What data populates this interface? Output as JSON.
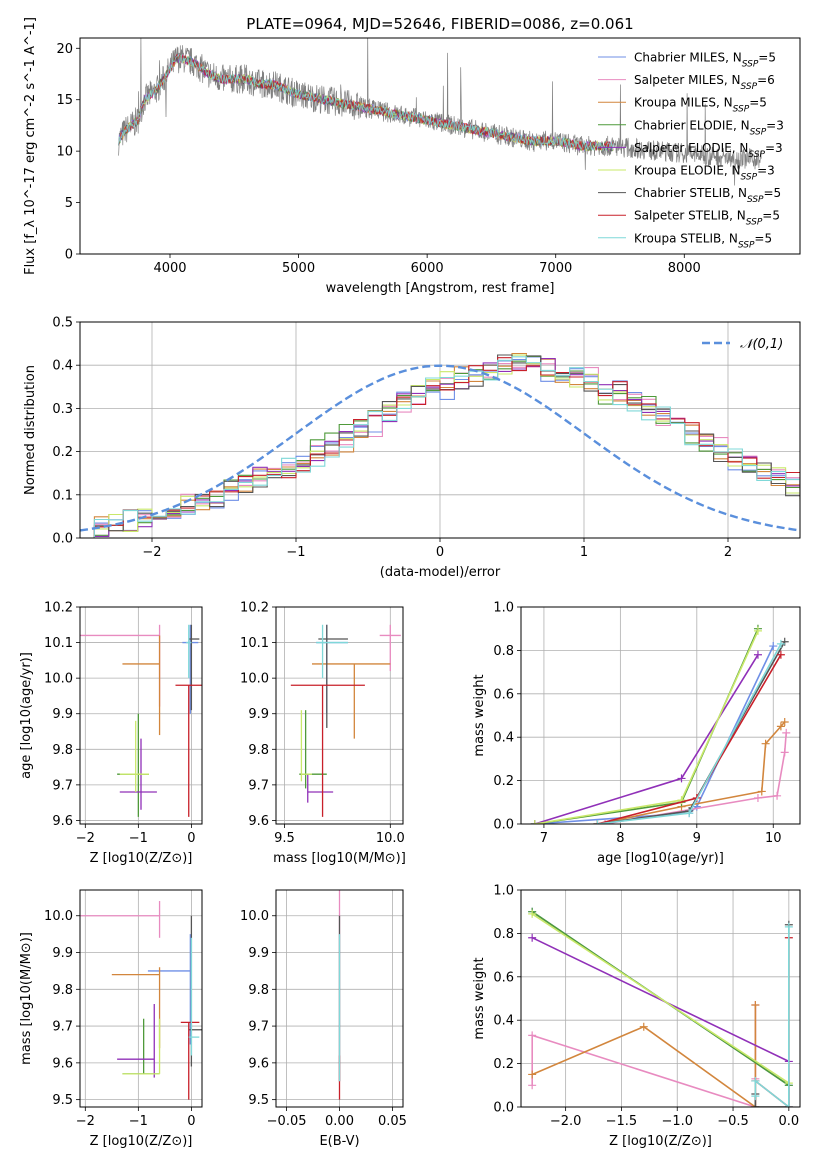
{
  "figure": {
    "title": "PLATE=0964, MJD=52646, FIBERID=0086, z=0.061"
  },
  "series_colors": [
    "#6f8fe6",
    "#e88bc0",
    "#d2863d",
    "#4f9a3a",
    "#9030b8",
    "#c9e86a",
    "#555555",
    "#c8202a",
    "#7fd8d8"
  ],
  "legend_labels": [
    "Chabrier MILES, N_SSP=5",
    "Salpeter MILES, N_SSP=6",
    "Kroupa MILES, N_SSP=5",
    "Chabrier ELODIE, N_SSP=3",
    "Salpeter ELODIE, N_SSP=3",
    "Kroupa ELODIE, N_SSP=3",
    "Chabrier STELIB, N_SSP=5",
    "Salpeter STELIB, N_SSP=5",
    "Kroupa STELIB, N_SSP=5"
  ],
  "chart_data": [
    {
      "id": "spectrum",
      "type": "line",
      "xlabel": "wavelength [Angstrom, rest frame]",
      "ylabel": "Flux [f_λ 10^-17 erg cm^-2 s^-1 A^-1]",
      "xlim": [
        3300,
        8900
      ],
      "ylim": [
        0,
        21
      ],
      "xticks": [
        4000,
        5000,
        6000,
        7000,
        8000
      ],
      "yticks": [
        0,
        5,
        10,
        15,
        20
      ],
      "grid": false,
      "legend": "top-right",
      "data_profile": {
        "x": [
          3600,
          3650,
          3700,
          3750,
          3800,
          3900,
          3950,
          4000,
          4050,
          4100,
          4200,
          4300,
          4400,
          4500,
          4600,
          4700,
          4800,
          4900,
          5000,
          5200,
          5400,
          5600,
          5800,
          6000,
          6200,
          6400,
          6600,
          6800,
          7000,
          7200,
          7400,
          7600,
          7800,
          8000,
          8200,
          8400,
          8600
        ],
        "y": [
          11.0,
          12.0,
          12.5,
          13.0,
          15.0,
          16.0,
          17.0,
          18.0,
          19.0,
          19.0,
          18.5,
          17.5,
          17.0,
          17.0,
          17.0,
          16.5,
          16.5,
          16.0,
          15.5,
          15.0,
          14.5,
          14.0,
          13.5,
          13.0,
          12.5,
          12.0,
          11.5,
          11.0,
          11.0,
          10.5,
          10.5,
          10.3,
          10.0,
          9.8,
          9.5,
          9.3,
          9.2
        ]
      },
      "model_x_range": [
        3600,
        7450
      ]
    },
    {
      "id": "residual_hist",
      "type": "line",
      "xlabel": "(data-model)/error",
      "ylabel": "Normed distribution",
      "xlim": [
        -2.5,
        2.5
      ],
      "ylim": [
        0,
        0.5
      ],
      "xticks": [
        -2,
        -1,
        0,
        1,
        2
      ],
      "yticks": [
        0.0,
        0.1,
        0.2,
        0.3,
        0.4,
        0.5
      ],
      "grid": true,
      "legend": "top-right",
      "legend_label": "N(0,1)",
      "reference_curve": "normal(0,1)",
      "bin_width": 0.1,
      "bin_start": -2.5,
      "series_hist": [
        [
          0.02,
          0.03,
          0.03,
          0.04,
          0.05,
          0.06,
          0.07,
          0.07,
          0.08,
          0.09,
          0.11,
          0.13,
          0.14,
          0.14,
          0.16,
          0.18,
          0.21,
          0.22,
          0.24,
          0.25,
          0.27,
          0.31,
          0.32,
          0.33,
          0.36,
          0.34,
          0.36,
          0.37,
          0.38,
          0.4,
          0.41,
          0.4,
          0.38,
          0.39,
          0.37,
          0.36,
          0.33,
          0.34,
          0.32,
          0.31,
          0.28,
          0.26,
          0.24,
          0.22,
          0.2,
          0.18,
          0.17,
          0.15,
          0.14,
          0.12,
          0.11
        ],
        [
          0.02,
          0.02,
          0.03,
          0.04,
          0.05,
          0.06,
          0.07,
          0.08,
          0.09,
          0.1,
          0.12,
          0.13,
          0.14,
          0.15,
          0.16,
          0.17,
          0.19,
          0.21,
          0.23,
          0.25,
          0.26,
          0.29,
          0.31,
          0.33,
          0.35,
          0.36,
          0.37,
          0.38,
          0.39,
          0.4,
          0.41,
          0.41,
          0.4,
          0.39,
          0.38,
          0.37,
          0.35,
          0.34,
          0.32,
          0.3,
          0.28,
          0.27,
          0.25,
          0.23,
          0.21,
          0.19,
          0.17,
          0.16,
          0.14,
          0.13,
          0.11
        ],
        [
          0.02,
          0.03,
          0.03,
          0.04,
          0.05,
          0.06,
          0.07,
          0.08,
          0.09,
          0.1,
          0.11,
          0.13,
          0.14,
          0.15,
          0.16,
          0.17,
          0.19,
          0.21,
          0.22,
          0.25,
          0.27,
          0.29,
          0.32,
          0.34,
          0.35,
          0.36,
          0.38,
          0.38,
          0.39,
          0.4,
          0.41,
          0.4,
          0.39,
          0.38,
          0.37,
          0.36,
          0.34,
          0.33,
          0.31,
          0.29,
          0.28,
          0.26,
          0.24,
          0.22,
          0.2,
          0.19,
          0.17,
          0.15,
          0.14,
          0.12,
          0.11
        ]
      ]
    },
    {
      "id": "age_vs_Z",
      "type": "scatter",
      "xlabel": "Z [log10(Z/Z⊙)]",
      "ylabel": "age [log10(age/yr)]",
      "xlim": [
        -2.1,
        0.2
      ],
      "ylim": [
        9.59,
        10.2
      ],
      "xticks": [
        -2,
        -1,
        0
      ],
      "yticks": [
        9.6,
        9.7,
        9.8,
        9.9,
        10.0,
        10.1,
        10.2
      ],
      "grid": true,
      "points": [
        {
          "series": 0,
          "x": -0.02,
          "y": 10.1,
          "xerr": [
            0.15,
            0.15
          ],
          "yerr": [
            0.2,
            0.05
          ]
        },
        {
          "series": 1,
          "x": -0.6,
          "y": 10.12,
          "xerr": [
            1.5,
            0.0
          ],
          "yerr": [
            0.2,
            0.03
          ]
        },
        {
          "series": 2,
          "x": -0.6,
          "y": 10.04,
          "xerr": [
            0.7,
            0.0
          ],
          "yerr": [
            0.2,
            0.08
          ]
        },
        {
          "series": 3,
          "x": -1.0,
          "y": 9.73,
          "xerr": [
            0.4,
            0.2
          ],
          "yerr": [
            0.12,
            0.17
          ]
        },
        {
          "series": 4,
          "x": -0.95,
          "y": 9.68,
          "xerr": [
            0.4,
            0.3
          ],
          "yerr": [
            0.05,
            0.15
          ]
        },
        {
          "series": 5,
          "x": -1.05,
          "y": 9.73,
          "xerr": [
            0.3,
            0.25
          ],
          "yerr": [
            0.05,
            0.15
          ]
        },
        {
          "series": 6,
          "x": 0.0,
          "y": 10.11,
          "xerr": [
            0.05,
            0.15
          ],
          "yerr": [
            0.2,
            0.04
          ]
        },
        {
          "series": 7,
          "x": -0.05,
          "y": 9.98,
          "xerr": [
            0.25,
            0.25
          ],
          "yerr": [
            0.37,
            0.0
          ]
        },
        {
          "series": 8,
          "x": -0.05,
          "y": 10.1,
          "xerr": [
            0.05,
            0.05
          ],
          "yerr": [
            0.1,
            0.05
          ]
        }
      ]
    },
    {
      "id": "age_vs_mass",
      "type": "scatter",
      "xlabel": "mass [log10(M/M⊙)]",
      "ylabel": "",
      "xlim": [
        9.46,
        10.06
      ],
      "ylim": [
        9.59,
        10.2
      ],
      "xticks": [
        9.5,
        10.0
      ],
      "yticks": [
        9.6,
        9.7,
        9.8,
        9.9,
        10.0,
        10.1,
        10.2
      ],
      "grid": true,
      "points": [
        {
          "series": 0,
          "x": 9.7,
          "y": 10.1,
          "xerr": [
            0.05,
            0.1
          ],
          "yerr": [
            0.2,
            0.05
          ]
        },
        {
          "series": 1,
          "x": 10.0,
          "y": 10.12,
          "xerr": [
            0.05,
            0.05
          ],
          "yerr": [
            0.1,
            0.03
          ]
        },
        {
          "series": 2,
          "x": 9.83,
          "y": 10.04,
          "xerr": [
            0.2,
            0.17
          ],
          "yerr": [
            0.21,
            0.0
          ]
        },
        {
          "series": 3,
          "x": 9.6,
          "y": 9.73,
          "xerr": [
            0.03,
            0.1
          ],
          "yerr": [
            0.04,
            0.18
          ]
        },
        {
          "series": 4,
          "x": 9.61,
          "y": 9.68,
          "xerr": [
            0.0,
            0.12
          ],
          "yerr": [
            0.03,
            0.05
          ]
        },
        {
          "series": 5,
          "x": 9.58,
          "y": 9.73,
          "xerr": [
            0.0,
            0.05
          ],
          "yerr": [
            0.02,
            0.18
          ]
        },
        {
          "series": 6,
          "x": 9.7,
          "y": 10.11,
          "xerr": [
            0.04,
            0.1
          ],
          "yerr": [
            0.25,
            0.04
          ]
        },
        {
          "series": 7,
          "x": 9.68,
          "y": 9.98,
          "xerr": [
            0.15,
            0.2
          ],
          "yerr": [
            0.37,
            0.0
          ]
        },
        {
          "series": 8,
          "x": 9.68,
          "y": 10.1,
          "xerr": [
            0.03,
            0.12
          ],
          "yerr": [
            0.1,
            0.05
          ]
        }
      ]
    },
    {
      "id": "weight_vs_age",
      "type": "line",
      "xlabel": "age [log10(age/yr)]",
      "ylabel": "mass weight",
      "xlim": [
        6.7,
        10.35
      ],
      "ylim": [
        0,
        1.0
      ],
      "xticks": [
        7,
        8,
        9,
        10
      ],
      "yticks": [
        0.0,
        0.2,
        0.4,
        0.6,
        0.8,
        1.0
      ],
      "grid": true,
      "series": [
        {
          "x": [
            6.88,
            8.9,
            9.0,
            10.0
          ],
          "y": [
            0.0,
            0.05,
            0.08,
            0.82
          ]
        },
        {
          "x": [
            7.8,
            9.8,
            10.05,
            10.15,
            10.17
          ],
          "y": [
            0.0,
            0.12,
            0.13,
            0.33,
            0.42
          ]
        },
        {
          "x": [
            7.7,
            8.8,
            9.85,
            9.9,
            10.1,
            10.15
          ],
          "y": [
            0.0,
            0.08,
            0.15,
            0.37,
            0.45,
            0.47
          ]
        },
        {
          "x": [
            6.88,
            8.8,
            9.8
          ],
          "y": [
            0.0,
            0.1,
            0.9
          ]
        },
        {
          "x": [
            6.88,
            8.8,
            9.8
          ],
          "y": [
            0.0,
            0.21,
            0.78
          ]
        },
        {
          "x": [
            6.88,
            8.8,
            9.8
          ],
          "y": [
            0.0,
            0.11,
            0.89
          ]
        },
        {
          "x": [
            7.7,
            8.9,
            10.15
          ],
          "y": [
            0.0,
            0.06,
            0.84
          ]
        },
        {
          "x": [
            7.7,
            9.0,
            10.1
          ],
          "y": [
            0.0,
            0.12,
            0.78
          ]
        },
        {
          "x": [
            7.7,
            8.9,
            10.1
          ],
          "y": [
            0.0,
            0.05,
            0.83
          ]
        }
      ]
    },
    {
      "id": "mass_vs_Z",
      "type": "scatter",
      "xlabel": "Z [log10(Z/Z⊙)]",
      "ylabel": "mass [log10(M/M⊙)]",
      "xlim": [
        -2.1,
        0.2
      ],
      "ylim": [
        9.48,
        10.07
      ],
      "xticks": [
        -2,
        -1,
        0
      ],
      "yticks": [
        9.5,
        9.6,
        9.7,
        9.8,
        9.9,
        10.0
      ],
      "grid": true,
      "points": [
        {
          "series": 0,
          "x": -0.02,
          "y": 9.85,
          "xerr": [
            0.8,
            0.0
          ],
          "yerr": [
            0.2,
            0.1
          ]
        },
        {
          "series": 1,
          "x": -0.6,
          "y": 10.0,
          "xerr": [
            1.5,
            0.0
          ],
          "yerr": [
            0.06,
            0.04
          ]
        },
        {
          "series": 2,
          "x": -0.6,
          "y": 9.84,
          "xerr": [
            0.9,
            0.0
          ],
          "yerr": [
            0.2,
            0.02
          ]
        },
        {
          "series": 3,
          "x": -0.9,
          "y": 9.57,
          "xerr": [
            0.4,
            0.3
          ],
          "yerr": [
            0.0,
            0.15
          ]
        },
        {
          "series": 4,
          "x": -0.7,
          "y": 9.61,
          "xerr": [
            0.7,
            0.0
          ],
          "yerr": [
            0.05,
            0.15
          ]
        },
        {
          "series": 5,
          "x": -0.6,
          "y": 9.57,
          "xerr": [
            0.7,
            0.0
          ],
          "yerr": [
            0.0,
            0.15
          ]
        },
        {
          "series": 6,
          "x": 0.0,
          "y": 9.69,
          "xerr": [
            0.05,
            0.2
          ],
          "yerr": [
            0.1,
            0.31
          ]
        },
        {
          "series": 7,
          "x": -0.05,
          "y": 9.71,
          "xerr": [
            0.15,
            0.2
          ],
          "yerr": [
            0.21,
            0.0
          ]
        },
        {
          "series": 8,
          "x": 0.0,
          "y": 9.67,
          "xerr": [
            0.05,
            0.15
          ],
          "yerr": [
            0.05,
            0.27
          ]
        }
      ]
    },
    {
      "id": "mass_vs_ebv",
      "type": "scatter",
      "xlabel": "E(B-V)",
      "ylabel": "",
      "xlim": [
        -0.06,
        0.06
      ],
      "ylim": [
        9.48,
        10.07
      ],
      "xticks": [
        -0.05,
        0.0,
        0.05
      ],
      "yticks": [
        9.5,
        9.6,
        9.7,
        9.8,
        9.9,
        10.0
      ],
      "grid": true,
      "points": [
        {
          "series": 1,
          "x": 0.0,
          "y": 10.0,
          "xerr": [
            0,
            0
          ],
          "yerr": [
            0.45,
            0.07
          ]
        },
        {
          "series": 6,
          "x": 0.0,
          "y": 9.95,
          "xerr": [
            0,
            0
          ],
          "yerr": [
            0.4,
            0.05
          ]
        },
        {
          "series": 7,
          "x": 0.0,
          "y": 9.55,
          "xerr": [
            0,
            0
          ],
          "yerr": [
            0.05,
            0.07
          ]
        },
        {
          "series": 8,
          "x": 0.0,
          "y": 9.75,
          "xerr": [
            0,
            0
          ],
          "yerr": [
            0.2,
            0.2
          ]
        }
      ]
    },
    {
      "id": "weight_vs_Z",
      "type": "line",
      "xlabel": "Z [log10(Z/Z⊙)]",
      "ylabel": "mass weight",
      "xlim": [
        -2.4,
        0.1
      ],
      "ylim": [
        0,
        1.0
      ],
      "xticks": [
        -2.0,
        -1.5,
        -1.0,
        -0.5,
        0.0
      ],
      "yticks": [
        0.0,
        0.2,
        0.4,
        0.6,
        0.8,
        1.0
      ],
      "grid": true,
      "series": [
        {
          "x": [
            -2.3,
            0.0,
            0.0
          ],
          "y": [
            0.9,
            0.1,
            0.0
          ]
        },
        {
          "x": [
            -2.3,
            -2.3,
            -0.3,
            -0.3,
            -0.3
          ],
          "y": [
            0.1,
            0.33,
            0.0,
            0.47,
            0.13
          ]
        },
        {
          "x": [
            -2.3,
            -1.3,
            -0.3,
            -0.3
          ],
          "y": [
            0.15,
            0.37,
            0.0,
            0.47
          ]
        },
        {
          "x": [
            -2.3,
            0.0
          ],
          "y": [
            0.9,
            0.1
          ]
        },
        {
          "x": [
            -2.3,
            0.0
          ],
          "y": [
            0.78,
            0.21
          ]
        },
        {
          "x": [
            -2.3,
            0.0
          ],
          "y": [
            0.89,
            0.11
          ]
        },
        {
          "x": [
            -0.3,
            -0.3,
            0.0,
            0.0
          ],
          "y": [
            0.06,
            0.0,
            0.0,
            0.84
          ]
        },
        {
          "x": [
            -0.3,
            0.0,
            0.0
          ],
          "y": [
            0.12,
            0.0,
            0.78
          ]
        },
        {
          "x": [
            -0.3,
            -0.3,
            0.0,
            0.0
          ],
          "y": [
            0.05,
            0.12,
            0.0,
            0.83
          ]
        }
      ]
    }
  ]
}
